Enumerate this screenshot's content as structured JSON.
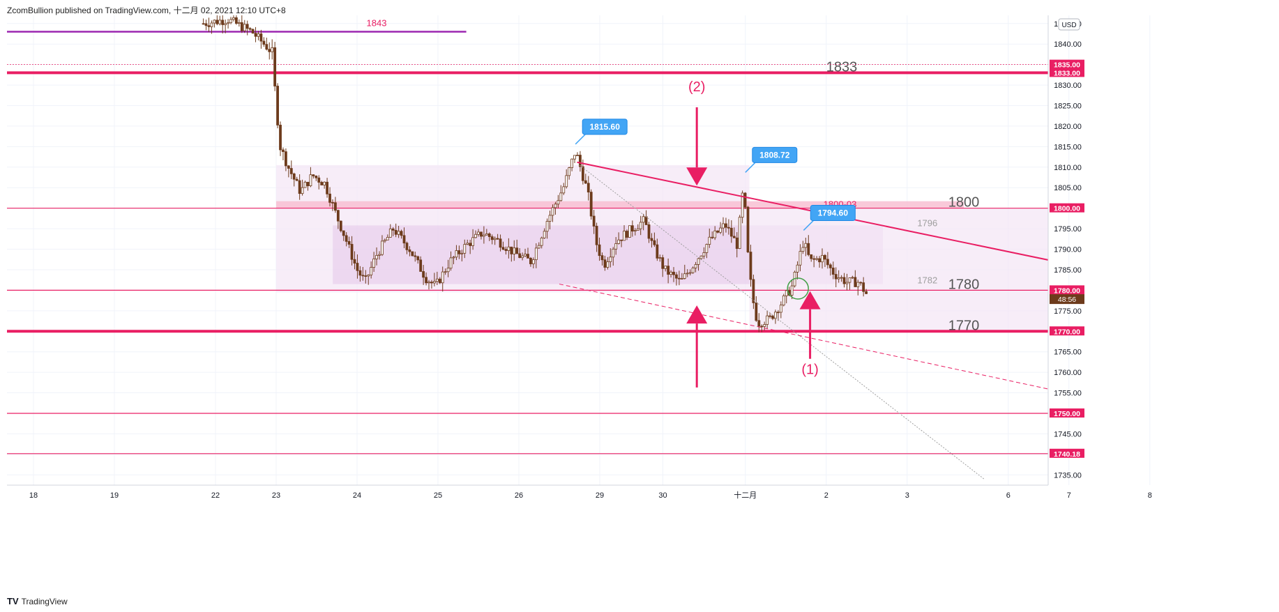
{
  "header": {
    "published_by": "ZcomBullion published on TradingView.com, 十二月 02, 2021 12:10 UTC+8"
  },
  "footer": {
    "brand_logo": "TV",
    "brand": "TradingView"
  },
  "colors": {
    "accent": "#e91e63",
    "purple_line": "#9c27b0",
    "candle": "#6d3b1c",
    "callout": "#42a5f5",
    "zone": "#f3e5f5",
    "zone_inner": "#e1bee7",
    "zone_band": "#f8bbd0"
  },
  "chart_data": {
    "type": "candlestick",
    "currency": "USD",
    "ylim": [
      1732.5,
      1847
    ],
    "y_ticks": [
      1735,
      1740,
      1745,
      1750,
      1755,
      1760,
      1765,
      1770,
      1775,
      1780,
      1785,
      1790,
      1795,
      1800,
      1805,
      1810,
      1815,
      1820,
      1825,
      1830,
      1835,
      1840,
      1845
    ],
    "x_ticks": [
      {
        "label": "18",
        "x": 0
      },
      {
        "label": "19",
        "x": 1
      },
      {
        "label": "22",
        "x": 2.25
      },
      {
        "label": "23",
        "x": 3
      },
      {
        "label": "24",
        "x": 4
      },
      {
        "label": "25",
        "x": 5
      },
      {
        "label": "26",
        "x": 6
      },
      {
        "label": "29",
        "x": 7
      },
      {
        "label": "30",
        "x": 7.78
      },
      {
        "label": "十二月",
        "x": 8.8
      },
      {
        "label": "2",
        "x": 9.8
      },
      {
        "label": "3",
        "x": 10.8
      },
      {
        "label": "6",
        "x": 12.05
      },
      {
        "label": "7",
        "x": 12.8
      },
      {
        "label": "8",
        "x": 13.8
      }
    ],
    "price_path": [
      [
        2.1,
        1845
      ],
      [
        2.4,
        1846
      ],
      [
        2.7,
        1843
      ],
      [
        2.95,
        1838
      ],
      [
        3.0,
        1825
      ],
      [
        3.05,
        1815
      ],
      [
        3.15,
        1810
      ],
      [
        3.3,
        1804
      ],
      [
        3.45,
        1808
      ],
      [
        3.6,
        1806
      ],
      [
        3.75,
        1798
      ],
      [
        3.85,
        1793
      ],
      [
        4.0,
        1785
      ],
      [
        4.1,
        1782
      ],
      [
        4.25,
        1789
      ],
      [
        4.45,
        1795
      ],
      [
        4.65,
        1790
      ],
      [
        4.85,
        1783
      ],
      [
        4.97,
        1781
      ],
      [
        5.15,
        1787
      ],
      [
        5.35,
        1791
      ],
      [
        5.55,
        1794
      ],
      [
        5.75,
        1792
      ],
      [
        5.95,
        1789
      ],
      [
        6.15,
        1787
      ],
      [
        6.35,
        1797
      ],
      [
        6.55,
        1805
      ],
      [
        6.7,
        1814
      ],
      [
        6.85,
        1804
      ],
      [
        6.95,
        1792
      ],
      [
        7.05,
        1786
      ],
      [
        7.2,
        1792
      ],
      [
        7.4,
        1795
      ],
      [
        7.55,
        1797
      ],
      [
        7.65,
        1791
      ],
      [
        7.8,
        1785
      ],
      [
        8.0,
        1782
      ],
      [
        8.15,
        1786
      ],
      [
        8.35,
        1792
      ],
      [
        8.55,
        1796
      ],
      [
        8.7,
        1791
      ],
      [
        8.78,
        1806
      ],
      [
        8.82,
        1791
      ],
      [
        8.88,
        1779
      ],
      [
        8.95,
        1772
      ],
      [
        9.1,
        1773
      ],
      [
        9.25,
        1777
      ],
      [
        9.38,
        1781
      ],
      [
        9.48,
        1789
      ],
      [
        9.52,
        1792
      ],
      [
        9.6,
        1787
      ],
      [
        9.75,
        1788
      ],
      [
        9.9,
        1784
      ],
      [
        10.05,
        1782
      ],
      [
        10.2,
        1782
      ],
      [
        10.3,
        1779
      ]
    ],
    "horizontal_levels": [
      {
        "price": 1833.0,
        "label": "1833.00",
        "name": "1833",
        "width": 4
      },
      {
        "price": 1835.0,
        "label": "1835.00",
        "width": 0.8,
        "dotted": true
      },
      {
        "price": 1800.0,
        "label": "1800.00",
        "name": "1800",
        "width": 1.2
      },
      {
        "price": 1780.0,
        "label": "1780.00",
        "name": "1780",
        "width": 1.2
      },
      {
        "price": 1770.0,
        "label": "1770.00",
        "name": "1770",
        "width": 4
      },
      {
        "price": 1750.0,
        "label": "1750.00",
        "width": 1.2
      },
      {
        "price": 1740.18,
        "label": "1740.18",
        "width": 1.2
      }
    ],
    "current_price_countdown": "48:56",
    "current_price_value": 1779.2,
    "purple_level": {
      "price": 1843,
      "name": "1843",
      "x_end": 5.35
    },
    "zones": [
      {
        "x0": 3.0,
        "x1": 8.85,
        "y0": 1779.5,
        "y1": 1810.5,
        "kind": "outer"
      },
      {
        "x0": 3.7,
        "x1": 10.5,
        "y0": 1781.5,
        "y1": 1795.8,
        "kind": "inner"
      },
      {
        "x0": 3.0,
        "x1": 11.5,
        "y0": 1800.0,
        "y1": 1801.7,
        "kind": "band",
        "label": "1800-03"
      },
      {
        "x0": 8.85,
        "x1": 13.3,
        "y0": 1770.0,
        "y1": 1800.0,
        "kind": "outer"
      }
    ],
    "zone_labels": [
      {
        "text": "1796",
        "x": 11.05,
        "y": 1796.5
      },
      {
        "text": "1782",
        "x": 11.05,
        "y": 1782.5
      }
    ],
    "callouts": [
      {
        "label": "1815.60",
        "x": 6.7,
        "price": 1815.6
      },
      {
        "label": "1808.72",
        "x": 8.8,
        "price": 1808.72
      },
      {
        "label": "1794.60",
        "x": 9.52,
        "price": 1794.6
      }
    ],
    "trendlines": [
      {
        "from": [
          6.72,
          1811.2
        ],
        "to": [
          14.3,
          1780.2
        ],
        "style": "solid"
      },
      {
        "from": [
          6.5,
          1781.5
        ],
        "to": [
          14.3,
          1748.5
        ],
        "style": "dashed"
      },
      {
        "from": [
          6.75,
          1810.5
        ],
        "to": [
          11.75,
          1734
        ],
        "style": "dotted"
      }
    ],
    "arrows": [
      {
        "x": 8.2,
        "from": 1824.6,
        "to": 1805.5
      },
      {
        "x": 8.2,
        "from": 1756.3,
        "to": 1776.3
      },
      {
        "x": 9.6,
        "from": 1763.3,
        "to": 1779.8
      }
    ],
    "wave_labels": [
      {
        "text": "(2)",
        "x": 8.2,
        "y": 1828.5
      },
      {
        "text": "(1)",
        "x": 9.6,
        "y": 1759.6
      }
    ],
    "highlight_circle": {
      "x": 9.45,
      "y": 1780.4
    }
  }
}
